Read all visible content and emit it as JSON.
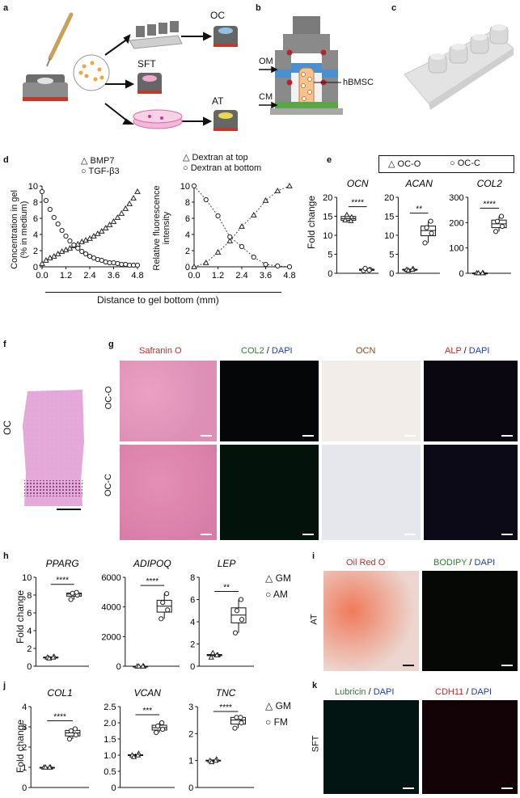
{
  "panel_letters": {
    "a": "a",
    "b": "b",
    "c": "c",
    "d": "d",
    "e": "e",
    "f": "f",
    "g": "g",
    "h": "h",
    "i": "i",
    "j": "j",
    "k": "k"
  },
  "panel_a": {
    "oc": "OC",
    "sft": "SFT",
    "at": "AT"
  },
  "panel_b": {
    "om": "OM",
    "cm": "CM",
    "hbmsc": "hBMSC"
  },
  "panel_d": {
    "left_ylabel_1": "Concentration in gel",
    "left_ylabel_2": "(% in medium)",
    "right_ylabel_1": "Relative fluorescence",
    "right_ylabel_2": "intensity",
    "xlabel": "Distance to gel bottom (mm)",
    "legend_left": [
      "BMP7",
      "TGF-β3"
    ],
    "legend_right": [
      "Dextran at top",
      "Dextran at bottom"
    ]
  },
  "panel_e": {
    "legend": [
      "OC-O",
      "OC-C"
    ],
    "ylabel": "Fold change",
    "genes": [
      "OCN",
      "ACAN",
      "COL2"
    ],
    "sig": [
      "****",
      "**",
      "****"
    ]
  },
  "panel_f": {
    "label": "OC"
  },
  "panel_g": {
    "cols": [
      {
        "a": "Safranin O",
        "b": "",
        "c": ""
      },
      {
        "a": "COL2",
        "b": " / ",
        "c": "DAPI"
      },
      {
        "a": "OCN",
        "b": "",
        "c": ""
      },
      {
        "a": "ALP",
        "b": " / ",
        "c": "DAPI"
      }
    ],
    "rows": [
      "OC-O",
      "OC-C"
    ]
  },
  "panel_h": {
    "ylabel": "Fold change",
    "genes": [
      "PPARG",
      "ADIPOQ",
      "LEP"
    ],
    "legend": [
      "GM",
      "AM"
    ],
    "sig": [
      "****",
      "****",
      "**"
    ]
  },
  "panel_i": {
    "row": "AT",
    "col1": "Oil Red O",
    "col2a": "BODIPY",
    "col2b": " / ",
    "col2c": "DAPI"
  },
  "panel_j": {
    "ylabel": "Fold change",
    "genes": [
      "COL1",
      "VCAN",
      "TNC"
    ],
    "legend": [
      "GM",
      "FM"
    ],
    "sig": [
      "****",
      "***",
      "****"
    ]
  },
  "panel_k": {
    "row": "SFT",
    "col1a": "Lubricin",
    "col1b": " / ",
    "col1c": "DAPI",
    "col2a": "CDH11",
    "col2b": " / ",
    "col2c": "DAPI"
  },
  "chart_data": [
    {
      "id": "d-left",
      "type": "scatter",
      "x_ticks": [
        "0.0",
        "1.2",
        "2.4",
        "3.6",
        "4.8"
      ],
      "y_ticks": [
        "0",
        "2",
        "4",
        "6",
        "8",
        "10"
      ],
      "xlim": [
        0,
        4.8
      ],
      "ylim": [
        0,
        10
      ],
      "series": [
        {
          "name": "BMP7",
          "marker": "triangle",
          "x": [
            0,
            0.2,
            0.4,
            0.6,
            0.8,
            1.0,
            1.2,
            1.4,
            1.6,
            1.8,
            2.0,
            2.2,
            2.4,
            2.6,
            2.8,
            3.0,
            3.2,
            3.4,
            3.6,
            3.8,
            4.0,
            4.2,
            4.4,
            4.6,
            4.8
          ],
          "y": [
            0.4,
            0.8,
            1.1,
            1.3,
            1.6,
            1.9,
            2.1,
            2.3,
            2.6,
            2.8,
            3.1,
            3.3,
            3.5,
            3.8,
            4.1,
            4.4,
            4.8,
            5.2,
            5.6,
            6.1,
            6.6,
            7.2,
            7.8,
            8.5,
            9.3
          ]
        },
        {
          "name": "TGF-β3",
          "marker": "circle",
          "x": [
            0,
            0.2,
            0.4,
            0.6,
            0.8,
            1.0,
            1.2,
            1.4,
            1.6,
            1.8,
            2.0,
            2.2,
            2.4,
            2.6,
            2.8,
            3.0,
            3.2,
            3.4,
            3.6,
            3.8,
            4.0,
            4.2,
            4.4,
            4.6,
            4.8
          ],
          "y": [
            9.3,
            8.2,
            7.1,
            6.1,
            5.3,
            4.5,
            3.8,
            3.2,
            2.7,
            2.3,
            1.9,
            1.6,
            1.3,
            1.1,
            0.9,
            0.8,
            0.6,
            0.5,
            0.5,
            0.4,
            0.3,
            0.3,
            0.2,
            0.2,
            0.2
          ]
        }
      ]
    },
    {
      "id": "d-right",
      "type": "line",
      "x_ticks": [
        "0.0",
        "1.2",
        "2.4",
        "3.6",
        "4.8"
      ],
      "y_ticks": [
        "0",
        "2",
        "4",
        "6",
        "8",
        "10"
      ],
      "xlim": [
        0,
        4.8
      ],
      "ylim": [
        0,
        10
      ],
      "series": [
        {
          "name": "Dextran at top",
          "marker": "triangle",
          "x": [
            0,
            0.6,
            1.2,
            1.8,
            2.4,
            3.0,
            3.6,
            4.2,
            4.8
          ],
          "y": [
            0,
            0.5,
            1.8,
            3.2,
            5.0,
            6.4,
            8.2,
            9.4,
            10
          ]
        },
        {
          "name": "Dextran at bottom",
          "marker": "circle",
          "x": [
            0,
            0.6,
            1.2,
            1.8,
            2.4,
            3.0,
            3.6,
            4.2,
            4.8
          ],
          "y": [
            10,
            8.3,
            6.3,
            3.7,
            2.5,
            1.2,
            0.3,
            0.1,
            0.0
          ]
        }
      ]
    },
    {
      "id": "e-OCN",
      "type": "box",
      "title": "OCN",
      "ylim": [
        0,
        20
      ],
      "y_ticks": [
        "0",
        "5",
        "10",
        "15",
        "20"
      ],
      "groups": [
        {
          "name": "OC-O",
          "values": [
            14.0,
            14.8,
            15.4,
            13.8
          ]
        },
        {
          "name": "OC-C",
          "values": [
            0.7,
            1.0,
            1.3,
            0.8
          ]
        }
      ]
    },
    {
      "id": "e-ACAN",
      "type": "box",
      "title": "ACAN",
      "ylim": [
        0,
        20
      ],
      "y_ticks": [
        "0",
        "5",
        "10",
        "15",
        "20"
      ],
      "groups": [
        {
          "name": "OC-O",
          "values": [
            1.0,
            1.2,
            0.8,
            1.0
          ]
        },
        {
          "name": "OC-C",
          "values": [
            8.0,
            10.5,
            12.0,
            13.7
          ]
        }
      ]
    },
    {
      "id": "e-COL2",
      "type": "box",
      "title": "COL2",
      "ylim": [
        0,
        300
      ],
      "y_ticks": [
        "0",
        "100",
        "200",
        "300"
      ],
      "groups": [
        {
          "name": "OC-O",
          "values": [
            1,
            1,
            1,
            1
          ]
        },
        {
          "name": "OC-C",
          "values": [
            165,
            185,
            205,
            225
          ]
        }
      ]
    },
    {
      "id": "h-PPARG",
      "type": "box",
      "title": "PPARG",
      "ylim": [
        0,
        10
      ],
      "y_ticks": [
        "0",
        "2",
        "4",
        "6",
        "8",
        "10"
      ],
      "groups": [
        {
          "name": "GM",
          "values": [
            1.0,
            1.1,
            0.9,
            1.0
          ]
        },
        {
          "name": "AM",
          "values": [
            7.5,
            8.0,
            8.2,
            8.3
          ]
        }
      ]
    },
    {
      "id": "h-ADIPOQ",
      "type": "box",
      "title": "ADIPOQ",
      "ylim": [
        0,
        6000
      ],
      "y_ticks": [
        "0",
        "2000",
        "4000",
        "6000"
      ],
      "groups": [
        {
          "name": "GM",
          "values": [
            1,
            1,
            1,
            1
          ]
        },
        {
          "name": "AM",
          "values": [
            3200,
            3800,
            4300,
            4900
          ]
        }
      ]
    },
    {
      "id": "h-LEP",
      "type": "box",
      "title": "LEP",
      "ylim": [
        0,
        8
      ],
      "y_ticks": [
        "0",
        "2",
        "4",
        "6",
        "8"
      ],
      "groups": [
        {
          "name": "GM",
          "values": [
            0.8,
            1.0,
            1.2,
            1.0
          ]
        },
        {
          "name": "AM",
          "values": [
            3.0,
            4.2,
            5.0,
            6.0
          ]
        }
      ]
    },
    {
      "id": "j-COL1",
      "type": "box",
      "title": "COL1",
      "ylim": [
        0,
        4
      ],
      "y_ticks": [
        "0",
        "1",
        "2",
        "3",
        "4"
      ],
      "groups": [
        {
          "name": "GM",
          "values": [
            1.0,
            1.0,
            1.0,
            1.0
          ]
        },
        {
          "name": "FM",
          "values": [
            2.4,
            2.6,
            2.8,
            2.9
          ]
        }
      ]
    },
    {
      "id": "j-VCAN",
      "type": "box",
      "title": "VCAN",
      "ylim": [
        0,
        2.5
      ],
      "y_ticks": [
        "0",
        "0.5",
        "1.0",
        "1.5",
        "2.0",
        "2.5"
      ],
      "groups": [
        {
          "name": "GM",
          "values": [
            1.0,
            1.05,
            0.95,
            1.0
          ]
        },
        {
          "name": "FM",
          "values": [
            1.7,
            1.8,
            1.9,
            2.0
          ]
        }
      ]
    },
    {
      "id": "j-TNC",
      "type": "box",
      "title": "TNC",
      "ylim": [
        0,
        3
      ],
      "y_ticks": [
        "0",
        "1",
        "2",
        "3"
      ],
      "groups": [
        {
          "name": "GM",
          "values": [
            1.0,
            1.05,
            0.95,
            1.0
          ]
        },
        {
          "name": "FM",
          "values": [
            2.2,
            2.4,
            2.6,
            2.6
          ]
        }
      ]
    }
  ]
}
